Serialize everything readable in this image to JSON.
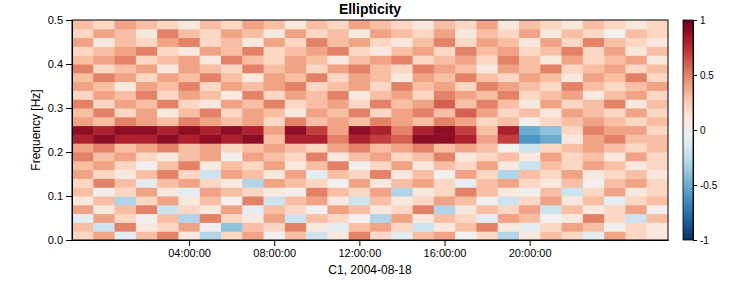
{
  "chart_data": {
    "type": "heatmap",
    "title": "Ellipticity",
    "x_label": "C1, 2004-08-18",
    "y_label": "Frequency [Hz]",
    "x": [
      -1,
      0,
      1,
      2,
      3,
      4,
      5,
      6,
      7,
      8,
      9,
      10,
      11,
      12,
      13,
      14,
      15,
      16,
      17,
      18,
      19,
      20,
      21,
      22,
      23,
      24,
      25,
      26
    ],
    "y": [
      0.01,
      0.03,
      0.05,
      0.07,
      0.09,
      0.11,
      0.13,
      0.15,
      0.17,
      0.19,
      0.21,
      0.23,
      0.25,
      0.27,
      0.29,
      0.31,
      0.33,
      0.35,
      0.37,
      0.39,
      0.41,
      0.43,
      0.45,
      0.47,
      0.49
    ],
    "z": [
      [
        0.2,
        0.4,
        -0.1,
        0.3,
        0.5,
        0.1,
        -0.3,
        0.2,
        0.4,
        0.0,
        0.3,
        -0.2,
        0.1,
        0.5,
        0.2,
        -0.1,
        0.3,
        0.4,
        0.0,
        0.2,
        -0.3,
        0.1,
        0.3,
        0.2,
        -0.1,
        0.4,
        0.2,
        0.1
      ],
      [
        0.3,
        -0.2,
        0.5,
        0.1,
        0.2,
        0.4,
        0.0,
        -0.4,
        0.3,
        0.2,
        0.5,
        0.1,
        -0.1,
        0.3,
        0.4,
        0.2,
        -0.2,
        0.1,
        0.3,
        0.5,
        0.1,
        -0.1,
        0.2,
        0.4,
        0.3,
        0.0,
        0.2,
        0.1
      ],
      [
        -0.1,
        0.4,
        0.2,
        0.0,
        0.3,
        -0.3,
        0.5,
        0.2,
        0.1,
        0.4,
        -0.2,
        0.3,
        0.2,
        0.0,
        -0.3,
        0.4,
        0.1,
        0.3,
        0.2,
        -0.1,
        0.4,
        0.3,
        0.0,
        0.1,
        0.5,
        0.2,
        -0.2,
        0.3
      ],
      [
        0.4,
        0.1,
        0.3,
        0.5,
        -0.2,
        0.2,
        0.1,
        0.4,
        -0.1,
        0.3,
        0.2,
        0.0,
        0.4,
        0.3,
        0.1,
        0.2,
        0.5,
        -0.3,
        0.1,
        0.3,
        0.2,
        0.4,
        -0.2,
        0.3,
        0.1,
        0.2,
        0.4,
        0.0
      ],
      [
        0.1,
        0.3,
        -0.3,
        0.2,
        0.4,
        0.1,
        0.3,
        0.0,
        0.5,
        -0.2,
        0.3,
        0.4,
        0.1,
        -0.2,
        0.3,
        0.1,
        0.2,
        0.4,
        0.3,
        0.0,
        -0.2,
        0.2,
        0.4,
        0.1,
        0.3,
        -0.1,
        0.2,
        0.3
      ],
      [
        0.3,
        0.0,
        0.2,
        0.4,
        0.1,
        -0.1,
        0.4,
        0.3,
        0.2,
        0.1,
        0.0,
        0.5,
        0.3,
        0.2,
        0.4,
        -0.3,
        0.1,
        0.2,
        0.5,
        0.3,
        0.1,
        0.0,
        0.3,
        -0.2,
        0.2,
        0.4,
        0.1,
        0.2
      ],
      [
        0.2,
        0.5,
        0.3,
        -0.1,
        0.3,
        0.4,
        0.2,
        0.1,
        -0.3,
        0.4,
        0.3,
        0.2,
        0.0,
        0.4,
        0.1,
        0.3,
        0.4,
        0.2,
        -0.1,
        0.3,
        0.4,
        0.2,
        0.1,
        0.3,
        0.0,
        0.3,
        0.4,
        0.2
      ],
      [
        0.4,
        0.2,
        0.1,
        0.3,
        0.5,
        0.2,
        -0.2,
        0.4,
        0.3,
        0.1,
        0.4,
        -0.1,
        0.3,
        0.2,
        0.5,
        0.1,
        0.3,
        0.0,
        0.4,
        0.2,
        -0.3,
        0.3,
        0.2,
        0.4,
        0.1,
        0.2,
        0.3,
        0.1
      ],
      [
        0.3,
        0.4,
        0.2,
        0.0,
        0.3,
        0.5,
        0.1,
        0.3,
        0.2,
        0.4,
        0.1,
        0.3,
        0.5,
        0.0,
        0.2,
        0.4,
        0.1,
        0.3,
        0.2,
        0.4,
        0.1,
        -0.2,
        0.3,
        0.2,
        0.4,
        0.3,
        0.1,
        0.2
      ],
      [
        0.5,
        0.3,
        0.4,
        0.2,
        0.1,
        0.3,
        0.4,
        0.0,
        0.4,
        0.3,
        0.2,
        0.5,
        0.1,
        0.3,
        0.4,
        0.2,
        0.3,
        0.5,
        0.1,
        0.2,
        0.3,
        0.1,
        0.4,
        0.2,
        0.3,
        0.1,
        0.4,
        0.2
      ],
      [
        0.4,
        0.5,
        0.3,
        0.4,
        0.5,
        0.3,
        0.4,
        0.2,
        0.3,
        0.4,
        0.3,
        0.2,
        0.4,
        0.5,
        0.3,
        0.4,
        0.5,
        0.3,
        0.4,
        0.3,
        0.0,
        -0.2,
        0.2,
        0.3,
        0.4,
        0.3,
        0.2,
        0.3
      ],
      [
        0.8,
        0.9,
        0.8,
        0.8,
        0.9,
        0.8,
        0.9,
        0.8,
        0.9,
        0.3,
        0.8,
        0.8,
        0.5,
        0.8,
        0.7,
        0.6,
        0.9,
        0.9,
        0.8,
        0.4,
        0.7,
        -0.6,
        -0.5,
        0.1,
        0.4,
        0.5,
        0.3,
        0.3
      ],
      [
        0.9,
        0.8,
        0.9,
        0.9,
        0.8,
        0.9,
        0.8,
        0.9,
        0.8,
        0.4,
        0.9,
        0.7,
        0.4,
        0.9,
        0.8,
        0.5,
        0.8,
        0.9,
        0.7,
        0.3,
        0.8,
        -0.5,
        -0.4,
        0.2,
        0.5,
        0.4,
        0.4,
        0.2
      ],
      [
        0.4,
        0.3,
        0.5,
        0.4,
        0.3,
        0.5,
        0.4,
        0.3,
        0.4,
        0.2,
        0.5,
        0.3,
        0.4,
        0.3,
        0.5,
        0.4,
        0.3,
        0.5,
        0.4,
        0.2,
        0.3,
        0.0,
        0.2,
        0.3,
        0.4,
        0.3,
        0.2,
        0.3
      ],
      [
        0.3,
        0.5,
        0.2,
        0.4,
        0.1,
        0.3,
        0.5,
        0.2,
        0.4,
        0.3,
        0.1,
        0.4,
        0.3,
        0.5,
        0.2,
        0.4,
        0.5,
        0.3,
        0.6,
        0.4,
        0.2,
        0.3,
        0.1,
        0.4,
        0.3,
        0.2,
        0.4,
        0.2
      ],
      [
        0.5,
        0.2,
        0.4,
        0.3,
        0.5,
        0.2,
        0.1,
        0.4,
        0.3,
        0.5,
        0.2,
        0.3,
        0.4,
        0.2,
        0.5,
        0.3,
        0.4,
        0.6,
        0.3,
        0.5,
        0.3,
        0.1,
        0.4,
        0.2,
        0.3,
        0.5,
        0.1,
        0.3
      ],
      [
        0.2,
        0.4,
        0.3,
        0.5,
        0.2,
        0.4,
        0.3,
        0.1,
        0.5,
        0.2,
        0.4,
        0.3,
        0.5,
        0.1,
        0.3,
        0.4,
        0.2,
        0.5,
        0.4,
        0.3,
        0.5,
        0.2,
        0.3,
        0.4,
        0.1,
        0.3,
        0.4,
        0.2
      ],
      [
        0.4,
        0.3,
        0.1,
        0.4,
        0.3,
        0.5,
        0.2,
        0.4,
        0.3,
        0.4,
        0.5,
        0.2,
        0.3,
        0.4,
        0.2,
        0.5,
        0.3,
        0.4,
        0.2,
        0.5,
        0.4,
        0.3,
        0.2,
        0.5,
        0.3,
        0.2,
        0.3,
        0.4
      ],
      [
        0.3,
        0.5,
        0.4,
        0.2,
        0.4,
        0.3,
        0.5,
        0.3,
        0.1,
        0.4,
        0.3,
        0.5,
        0.2,
        0.4,
        0.3,
        0.1,
        0.4,
        0.3,
        0.5,
        0.3,
        0.2,
        0.4,
        0.3,
        0.1,
        0.4,
        0.3,
        0.5,
        0.2
      ],
      [
        0.5,
        0.2,
        0.3,
        0.4,
        0.1,
        0.4,
        0.3,
        0.2,
        0.5,
        0.3,
        0.4,
        0.2,
        0.4,
        0.5,
        0.3,
        0.2,
        0.5,
        0.4,
        0.3,
        0.1,
        0.4,
        0.3,
        0.5,
        0.2,
        0.3,
        0.4,
        0.2,
        0.3
      ],
      [
        0.3,
        0.4,
        0.5,
        0.2,
        0.3,
        0.4,
        0.1,
        0.5,
        0.3,
        0.2,
        0.4,
        0.3,
        0.1,
        0.3,
        0.4,
        0.5,
        0.2,
        0.3,
        0.4,
        0.2,
        0.5,
        0.3,
        0.1,
        0.4,
        0.2,
        0.3,
        0.4,
        0.1
      ],
      [
        0.2,
        0.3,
        0.4,
        0.5,
        0.2,
        0.1,
        0.4,
        0.3,
        0.5,
        0.2,
        0.3,
        0.4,
        0.5,
        0.2,
        0.1,
        0.3,
        0.4,
        0.2,
        0.5,
        0.3,
        0.4,
        0.2,
        0.3,
        0.5,
        0.2,
        0.4,
        0.1,
        0.3
      ],
      [
        0.4,
        0.1,
        0.3,
        0.2,
        0.4,
        0.5,
        0.2,
        0.3,
        0.1,
        0.4,
        0.2,
        0.5,
        0.3,
        0.4,
        0.2,
        0.1,
        0.3,
        0.5,
        0.2,
        0.4,
        0.3,
        0.1,
        0.4,
        0.2,
        0.5,
        0.3,
        0.2,
        0.1
      ],
      [
        0.2,
        0.4,
        0.3,
        0.1,
        0.5,
        0.3,
        0.2,
        0.4,
        0.3,
        0.1,
        0.4,
        0.2,
        0.3,
        0.1,
        0.4,
        0.3,
        0.2,
        0.4,
        0.1,
        0.3,
        0.2,
        0.4,
        0.1,
        0.3,
        0.2,
        0.0,
        0.3,
        0.2
      ],
      [
        0.3,
        0.2,
        0.4,
        0.3,
        0.2,
        0.1,
        0.3,
        0.2,
        0.4,
        0.3,
        0.1,
        0.3,
        0.2,
        0.4,
        0.3,
        0.2,
        0.1,
        0.3,
        0.2,
        0.4,
        0.1,
        0.3,
        0.2,
        0.1,
        0.3,
        0.2,
        0.1,
        0.2
      ]
    ],
    "xlim": [
      -1.5,
      26.5
    ],
    "ylim": [
      0,
      0.5
    ],
    "xticks": [
      {
        "value": 4,
        "label": "04:00:00"
      },
      {
        "value": 8,
        "label": "08:00:00"
      },
      {
        "value": 12,
        "label": "12:00:00"
      },
      {
        "value": 16,
        "label": "16:00:00"
      },
      {
        "value": 20,
        "label": "20:00:00"
      }
    ],
    "yticks": [
      {
        "value": 0,
        "label": "0.0"
      },
      0.1,
      0.2,
      0.3,
      0.4,
      0.5
    ],
    "zlim": [
      -1,
      1
    ],
    "zticks": [
      -1,
      -0.5,
      0,
      0.5,
      1
    ]
  }
}
